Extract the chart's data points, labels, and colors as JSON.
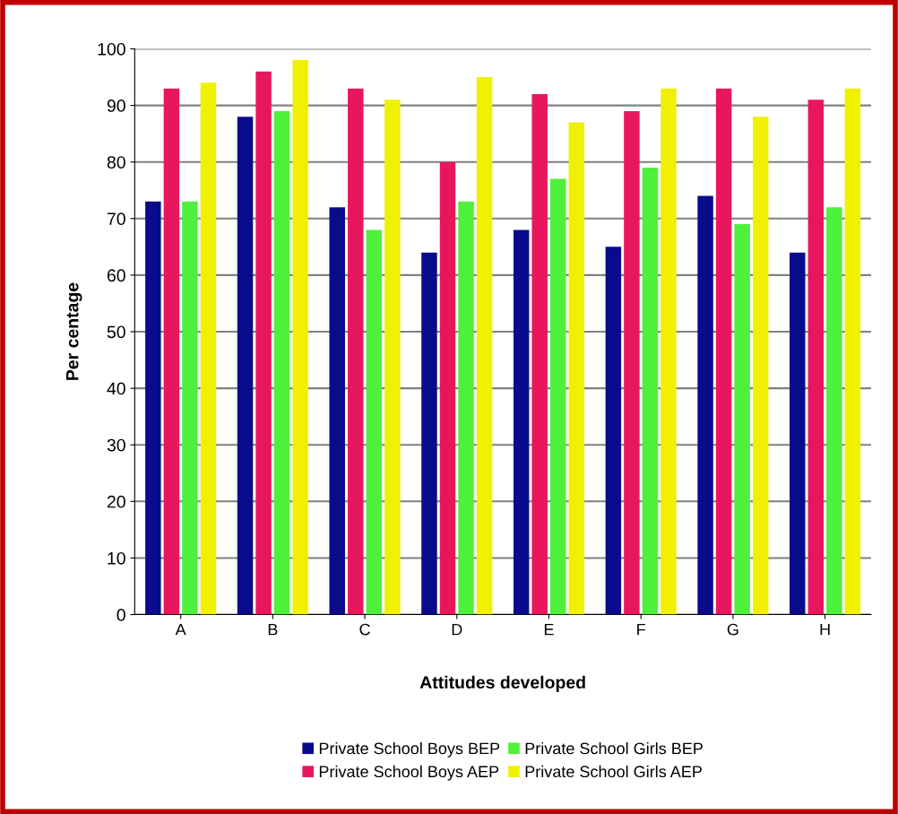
{
  "chart_data": {
    "type": "bar",
    "xlabel": "Attitudes developed",
    "ylabel": "Per centage",
    "categories": [
      "A",
      "B",
      "C",
      "D",
      "E",
      "F",
      "G",
      "H"
    ],
    "series": [
      {
        "name": "Private School Boys BEP",
        "color": "#0a0a8c",
        "values": [
          73,
          88,
          72,
          64,
          68,
          65,
          74,
          64
        ]
      },
      {
        "name": "Private School Boys AEP",
        "color": "#e8175d",
        "values": [
          93,
          96,
          93,
          80,
          92,
          89,
          93,
          91
        ]
      },
      {
        "name": "Private School Girls BEP",
        "color": "#4ef03c",
        "values": [
          73,
          89,
          68,
          73,
          77,
          79,
          69,
          72
        ]
      },
      {
        "name": "Private School Girls AEP",
        "color": "#f0f000",
        "values": [
          94,
          98,
          91,
          95,
          87,
          93,
          88,
          93
        ]
      }
    ],
    "ylim": [
      0,
      100
    ],
    "yticks": [
      0,
      10,
      20,
      30,
      40,
      50,
      60,
      70,
      80,
      90,
      100
    ],
    "grid": "y",
    "legend": "bottom"
  }
}
